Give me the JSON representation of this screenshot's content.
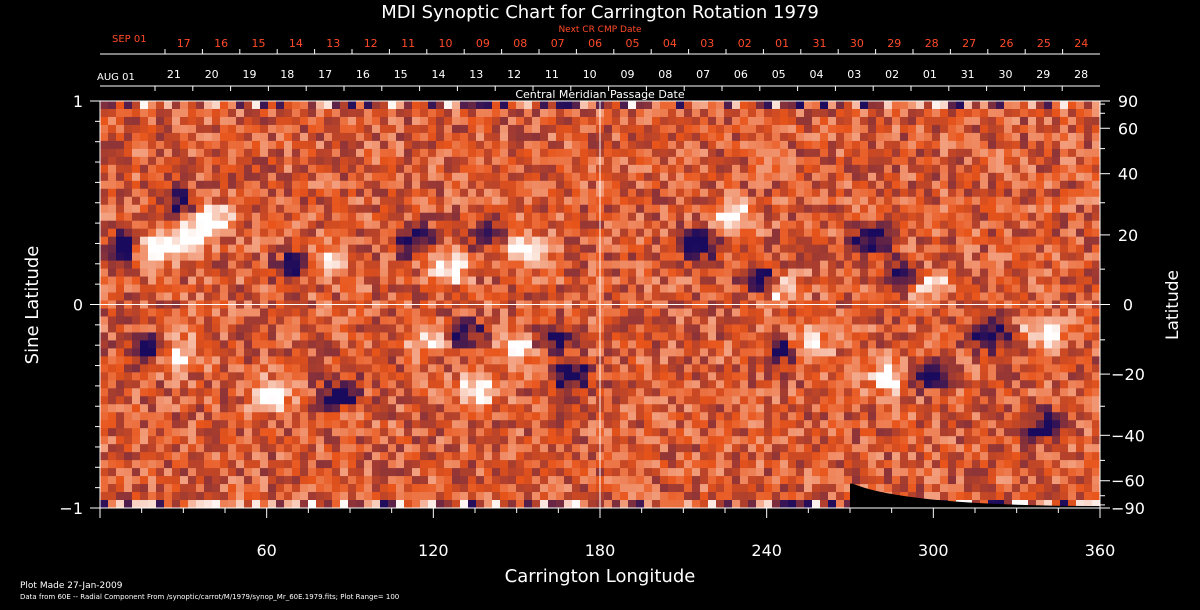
{
  "chart_data": {
    "type": "heatmap",
    "title": "MDI Synoptic Chart for Carrington Rotation 1979",
    "xlabel": "Carrington Longitude",
    "ylabel_left": "Sine Latitude",
    "ylabel_right": "Latitude",
    "xlim": [
      0,
      360
    ],
    "ylim": [
      -1,
      1
    ],
    "x_ticks": [
      60,
      120,
      180,
      240,
      300,
      360
    ],
    "y_left_ticks": [
      {
        "value": 1,
        "label": "1"
      },
      {
        "value": 0,
        "label": "0"
      },
      {
        "value": -1,
        "label": "−1"
      }
    ],
    "y_right_ticks": [
      90,
      60,
      40,
      20,
      0,
      -20,
      -40,
      -60,
      -90
    ],
    "top_axis_label": "Next CR CMP Date",
    "top_axis_start": "SEP 01",
    "top_axis_dates": [
      "17",
      "16",
      "15",
      "14",
      "13",
      "12",
      "11",
      "10",
      "09",
      "08",
      "07",
      "06",
      "05",
      "04",
      "03",
      "02",
      "01",
      "31",
      "30",
      "29",
      "28",
      "27",
      "26",
      "25",
      "24"
    ],
    "second_axis_label": "Central Meridian Passage Date",
    "second_axis_start": "AUG 01",
    "second_axis_dates": [
      "21",
      "20",
      "19",
      "18",
      "17",
      "16",
      "15",
      "14",
      "13",
      "12",
      "11",
      "10",
      "09",
      "08",
      "07",
      "06",
      "05",
      "04",
      "03",
      "02",
      "01",
      "31",
      "30",
      "29",
      "28"
    ],
    "colorscale": {
      "min_color": "#1a0a5e",
      "mid_color": "#e8541a",
      "max_color": "#ffffff"
    },
    "plot_range": 100,
    "strong_regions": [
      {
        "lon": 10,
        "sinlat": 0.28,
        "pol": -1
      },
      {
        "lon": 18,
        "sinlat": 0.26,
        "pol": 1
      },
      {
        "lon": 28,
        "sinlat": 0.5,
        "pol": -1
      },
      {
        "lon": 30,
        "sinlat": 0.32,
        "pol": 1
      },
      {
        "lon": 40,
        "sinlat": 0.42,
        "pol": 1
      },
      {
        "lon": 72,
        "sinlat": 0.2,
        "pol": -1
      },
      {
        "lon": 80,
        "sinlat": 0.2,
        "pol": 1
      },
      {
        "lon": 112,
        "sinlat": 0.32,
        "pol": -1
      },
      {
        "lon": 125,
        "sinlat": 0.18,
        "pol": 1
      },
      {
        "lon": 140,
        "sinlat": 0.34,
        "pol": -1
      },
      {
        "lon": 152,
        "sinlat": 0.28,
        "pol": 1
      },
      {
        "lon": 16,
        "sinlat": -0.22,
        "pol": -1
      },
      {
        "lon": 28,
        "sinlat": -0.24,
        "pol": 1
      },
      {
        "lon": 62,
        "sinlat": -0.45,
        "pol": 1
      },
      {
        "lon": 86,
        "sinlat": -0.44,
        "pol": -1
      },
      {
        "lon": 120,
        "sinlat": -0.16,
        "pol": 1
      },
      {
        "lon": 130,
        "sinlat": -0.14,
        "pol": -1
      },
      {
        "lon": 136,
        "sinlat": -0.42,
        "pol": 1
      },
      {
        "lon": 152,
        "sinlat": -0.2,
        "pol": 1
      },
      {
        "lon": 162,
        "sinlat": -0.18,
        "pol": -1
      },
      {
        "lon": 170,
        "sinlat": -0.36,
        "pol": -1
      },
      {
        "lon": 215,
        "sinlat": 0.29,
        "pol": -1
      },
      {
        "lon": 228,
        "sinlat": 0.42,
        "pol": 1
      },
      {
        "lon": 238,
        "sinlat": 0.12,
        "pol": -1
      },
      {
        "lon": 246,
        "sinlat": 0.08,
        "pol": 1
      },
      {
        "lon": 278,
        "sinlat": 0.32,
        "pol": -1
      },
      {
        "lon": 290,
        "sinlat": 0.14,
        "pol": -1
      },
      {
        "lon": 298,
        "sinlat": 0.11,
        "pol": 1
      },
      {
        "lon": 248,
        "sinlat": -0.22,
        "pol": -1
      },
      {
        "lon": 255,
        "sinlat": -0.2,
        "pol": 1
      },
      {
        "lon": 285,
        "sinlat": -0.36,
        "pol": 1
      },
      {
        "lon": 298,
        "sinlat": -0.35,
        "pol": -1
      },
      {
        "lon": 320,
        "sinlat": -0.15,
        "pol": -1
      },
      {
        "lon": 340,
        "sinlat": -0.13,
        "pol": 1
      },
      {
        "lon": 340,
        "sinlat": -0.6,
        "pol": -1
      }
    ]
  },
  "footer": {
    "plot_made": "Plot Made 27-Jan-2009",
    "data_from": "Data from 60E -- Radial Component From /synoptic/carrot/M/1979/synop_Mr_60E.1979.fits; Plot Range=  100"
  }
}
